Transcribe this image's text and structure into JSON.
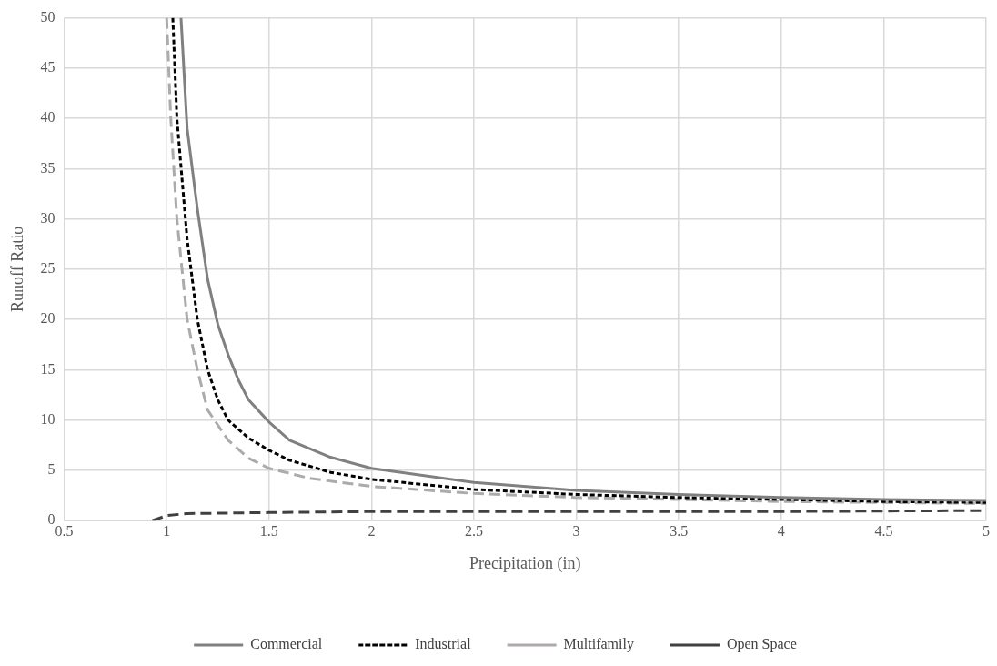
{
  "chart_data": {
    "type": "line",
    "xlabel": "Precipitation (in)",
    "ylabel": "Runoff Ratio",
    "xlim": [
      0.5,
      5
    ],
    "xticks": [
      0.5,
      1,
      1.5,
      2,
      2.5,
      3,
      3.5,
      4,
      4.5,
      5
    ],
    "ylim": [
      0,
      50
    ],
    "yticks": [
      0,
      5,
      10,
      15,
      20,
      25,
      30,
      35,
      40,
      45,
      50
    ],
    "grid": true,
    "legend": "bottom",
    "marker": "none",
    "series": [
      {
        "name": "Commercial",
        "color": "#808080",
        "line_style": "solid",
        "x": [
          1.07,
          1.1,
          1.15,
          1.2,
          1.25,
          1.3,
          1.35,
          1.4,
          1.5,
          1.6,
          1.8,
          2,
          2.5,
          3,
          3.5,
          4,
          4.5,
          5
        ],
        "values": [
          50,
          39,
          31,
          24,
          19.5,
          16.5,
          14,
          12,
          9.8,
          8,
          6.3,
          5.2,
          3.8,
          3,
          2.6,
          2.3,
          2.1,
          2.0
        ]
      },
      {
        "name": "Industrial",
        "color": "#000000",
        "line_style": "dotted",
        "x": [
          1.03,
          1.05,
          1.1,
          1.15,
          1.2,
          1.25,
          1.3,
          1.4,
          1.5,
          1.6,
          1.8,
          2,
          2.5,
          3,
          3.5,
          4,
          4.5,
          5
        ],
        "values": [
          50,
          40,
          28,
          20,
          15,
          12,
          10,
          8.2,
          7,
          6,
          4.8,
          4.1,
          3.1,
          2.6,
          2.3,
          2.1,
          1.9,
          1.8
        ]
      },
      {
        "name": "Multifamily",
        "color": "#aeaaaa",
        "line_style": "dashed",
        "x": [
          1.0,
          1.02,
          1.05,
          1.1,
          1.15,
          1.2,
          1.3,
          1.4,
          1.5,
          1.7,
          2,
          2.5,
          3,
          3.5,
          4,
          4.5,
          5
        ],
        "values": [
          50,
          40,
          30,
          20,
          15,
          11,
          8,
          6.2,
          5.2,
          4.2,
          3.4,
          2.7,
          2.3,
          2.1,
          1.9,
          1.8,
          1.7
        ]
      },
      {
        "name": "Open Space",
        "color": "#404040",
        "line_style": "dashed",
        "x": [
          0.93,
          1.0,
          1.1,
          1.5,
          2,
          3,
          4,
          5
        ],
        "values": [
          0,
          0.5,
          0.7,
          0.8,
          0.9,
          0.9,
          0.9,
          1
        ]
      }
    ]
  }
}
